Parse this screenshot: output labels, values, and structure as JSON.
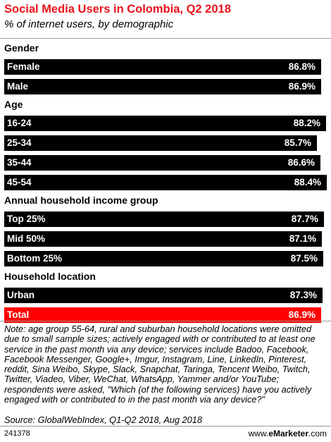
{
  "chart_data": {
    "type": "bar",
    "orientation": "horizontal",
    "title": "Social Media Users in Colombia, Q2 2018",
    "subtitle": "% of internet users, by demographic",
    "groups": [
      {
        "name": "Gender",
        "items": [
          {
            "label": "Female",
            "value": 86.8,
            "display": "86.8%"
          },
          {
            "label": "Male",
            "value": 86.9,
            "display": "86.9%"
          }
        ]
      },
      {
        "name": "Age",
        "items": [
          {
            "label": "16-24",
            "value": 88.2,
            "display": "88.2%"
          },
          {
            "label": "25-34",
            "value": 85.7,
            "display": "85.7%"
          },
          {
            "label": "35-44",
            "value": 86.6,
            "display": "86.6%"
          },
          {
            "label": "45-54",
            "value": 88.4,
            "display": "88.4%"
          }
        ]
      },
      {
        "name": "Annual household income group",
        "items": [
          {
            "label": "Top 25%",
            "value": 87.7,
            "display": "87.7%"
          },
          {
            "label": "Mid 50%",
            "value": 87.1,
            "display": "87.1%"
          },
          {
            "label": "Bottom 25%",
            "value": 87.5,
            "display": "87.5%"
          }
        ]
      },
      {
        "name": "Household location",
        "items": [
          {
            "label": "Urban",
            "value": 87.3,
            "display": "87.3%"
          }
        ]
      }
    ],
    "total": {
      "label": "Total",
      "value": 86.9,
      "display": "86.9%"
    },
    "colors": {
      "bar": "#000000",
      "total": "#ff0000",
      "title": "#e8121a"
    }
  },
  "note": "Note: age group 55-64, rural and suburban household locations were omitted due to small sample sizes; actively engaged with or contributed to at least one service in the past month via any device; services include Badoo, Facebook, Facebook Messenger, Google+, Imgur, Instagram, Line, LinkedIn, Pinterest, reddit, Sina Weibo, Skype, Slack, Snapchat, Taringa, Tencent Weibo, Twitch, Twitter, Viadeo, Viber, WeChat, WhatsApp, Yammer and/or YouTube; respondents were asked, \"Which (of the following services) have you actively engaged with or contributed to in the past month via any device?\"",
  "source": "Source: GlobalWebIndex, Q1-Q2 2018, Aug 2018",
  "chart_id": "241378",
  "brand": {
    "prefix": "www.",
    "name": "eMarketer",
    "suffix": ".com"
  }
}
